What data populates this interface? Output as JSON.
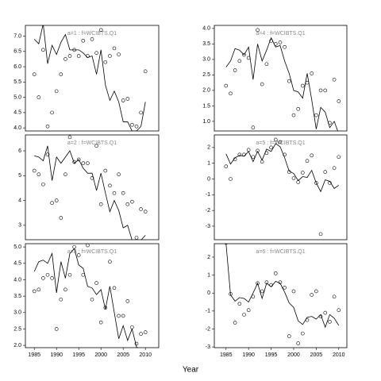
{
  "xlabel": "Year",
  "chart_data": [
    {
      "type": "line",
      "title": "a=1 : f=WCIBTS.Q1",
      "x": [
        1985,
        1986,
        1987,
        1988,
        1989,
        1990,
        1991,
        1992,
        1993,
        1994,
        1995,
        1996,
        1997,
        1998,
        1999,
        2000,
        2001,
        2002,
        2003,
        2004,
        2005,
        2006,
        2007,
        2008,
        2009,
        2010
      ],
      "series": [
        {
          "mode": "line",
          "color": "#000000",
          "values": [
            6.9,
            6.75,
            7.4,
            6.1,
            6.7,
            6.4,
            6.8,
            7.05,
            6.55,
            6.55,
            6.55,
            6.45,
            6.3,
            6.35,
            5.75,
            6.55,
            5.4,
            4.9,
            5.2,
            4.85,
            4.2,
            4.2,
            3.9,
            3.9,
            4.05,
            4.85
          ]
        },
        {
          "mode": "points",
          "color": "#000000",
          "values": [
            5.75,
            5.0,
            6.55,
            4.05,
            4.5,
            5.2,
            5.75,
            6.25,
            6.35,
            6.55,
            6.35,
            6.85,
            6.35,
            6.9,
            6.45,
            7.2,
            6.15,
            6.35,
            6.6,
            6.4,
            4.9,
            4.95,
            4.1,
            4.05,
            4.5,
            5.85
          ]
        }
      ],
      "xlim": [
        1983,
        2013
      ],
      "ylim": [
        3.9,
        7.35
      ],
      "yticks": [
        {
          "value": 4,
          "label": "4.0"
        },
        4.5,
        {
          "value": 5,
          "label": "5.0"
        },
        5.5,
        {
          "value": 6,
          "label": "6.0"
        },
        6.5,
        {
          "value": 7,
          "label": "7.0"
        }
      ]
    },
    {
      "type": "line",
      "title": "a=2 : f=WCIBTS.Q1",
      "x": [
        1985,
        1986,
        1987,
        1988,
        1989,
        1990,
        1991,
        1992,
        1993,
        1994,
        1995,
        1996,
        1997,
        1998,
        1999,
        2000,
        2001,
        2002,
        2003,
        2004,
        2005,
        2006,
        2007,
        2008,
        2009,
        2010
      ],
      "series": [
        {
          "mode": "line",
          "color": "#000000",
          "values": [
            5.8,
            5.75,
            5.6,
            6.2,
            4.8,
            5.75,
            5.5,
            5.75,
            6.0,
            5.5,
            5.65,
            5.3,
            5.1,
            5.1,
            4.4,
            5.1,
            4.3,
            3.55,
            4.0,
            3.6,
            2.9,
            3.0,
            2.4,
            2.4,
            2.4,
            2.6
          ]
        },
        {
          "mode": "points",
          "color": "#000000",
          "values": [
            5.2,
            5.05,
            4.65,
            5.85,
            3.9,
            4.0,
            3.3,
            5.05,
            6.55,
            5.55,
            5.65,
            5.5,
            5.5,
            4.9,
            6.2,
            3.85,
            5.2,
            4.6,
            4.3,
            5.05,
            4.3,
            3.85,
            3.95,
            2.5,
            3.65,
            3.55
          ]
        }
      ],
      "xlim": [
        1983,
        2013
      ],
      "ylim": [
        2.42,
        6.64
      ],
      "yticks": [
        3,
        4,
        5,
        6
      ]
    },
    {
      "type": "line",
      "title": "a=3 : f=WCIBTS.Q1",
      "x": [
        1985,
        1986,
        1987,
        1988,
        1989,
        1990,
        1991,
        1992,
        1993,
        1994,
        1995,
        1996,
        1997,
        1998,
        1999,
        2000,
        2001,
        2002,
        2003,
        2004,
        2005,
        2006,
        2007,
        2008,
        2009,
        2010
      ],
      "series": [
        {
          "mode": "line",
          "color": "#000000",
          "values": [
            4.25,
            4.55,
            4.6,
            4.5,
            4.8,
            3.6,
            4.55,
            4.05,
            4.8,
            4.95,
            4.45,
            4.35,
            3.8,
            3.75,
            3.55,
            3.7,
            3.1,
            3.8,
            3.0,
            2.2,
            2.6,
            2.15,
            2.5,
            1.95,
            1.85,
            1.8
          ]
        },
        {
          "mode": "points",
          "color": "#000000",
          "values": [
            3.65,
            3.7,
            4.05,
            4.15,
            4.05,
            2.5,
            3.4,
            3.7,
            4.15,
            5.0,
            4.75,
            4.15,
            5.05,
            3.4,
            3.9,
            2.7,
            3.15,
            4.55,
            3.75,
            2.9,
            2.9,
            3.35,
            2.55,
            2.05,
            2.35,
            2.4
          ]
        }
      ],
      "xlim": [
        1983,
        2013
      ],
      "ylim": [
        1.93,
        5.1
      ],
      "xticks": [
        1985,
        1990,
        1995,
        2000,
        2005,
        2010
      ],
      "yticks": [
        {
          "value": 2,
          "label": "2.0"
        },
        2.5,
        {
          "value": 3,
          "label": "3.0"
        },
        3.5,
        {
          "value": 4,
          "label": "4.0"
        },
        4.5,
        {
          "value": 5,
          "label": "5.0"
        }
      ]
    },
    {
      "type": "line",
      "title": "a=4 : f=WCIBTS.Q1",
      "x": [
        1985,
        1986,
        1987,
        1988,
        1989,
        1990,
        1991,
        1992,
        1993,
        1994,
        1995,
        1996,
        1997,
        1998,
        1999,
        2000,
        2001,
        2002,
        2003,
        2004,
        2005,
        2006,
        2007,
        2008,
        2009,
        2010
      ],
      "series": [
        {
          "mode": "line",
          "color": "#000000",
          "values": [
            2.75,
            2.95,
            3.35,
            3.3,
            3.15,
            3.4,
            2.35,
            3.5,
            2.95,
            3.3,
            3.7,
            3.4,
            3.45,
            2.95,
            2.55,
            2.0,
            1.95,
            1.75,
            2.55,
            1.7,
            0.75,
            1.45,
            1.3,
            0.8,
            1.0,
            0.6
          ]
        },
        {
          "mode": "points",
          "color": "#000000",
          "values": [
            2.15,
            1.9,
            2.65,
            2.95,
            3.15,
            3.05,
            0.8,
            3.95,
            2.2,
            2.85,
            3.6,
            3.5,
            3.55,
            3.4,
            2.3,
            1.2,
            1.4,
            2.15,
            2.25,
            2.55,
            1.2,
            2.0,
            2.0,
            0.95,
            2.35,
            1.65
          ]
        }
      ],
      "xlim": [
        1982.4,
        2011.8
      ],
      "ylim": [
        0.69,
        4.1
      ],
      "yticks": [
        {
          "value": 1,
          "label": "1.0"
        },
        1.5,
        {
          "value": 2,
          "label": "2.0"
        },
        2.5,
        {
          "value": 3,
          "label": "3.0"
        },
        3.5,
        {
          "value": 4,
          "label": "4.0"
        }
      ]
    },
    {
      "type": "line",
      "title": "a=5 : f=WCIBTS.Q1",
      "x": [
        1985,
        1986,
        1987,
        1988,
        1989,
        1990,
        1991,
        1992,
        1993,
        1994,
        1995,
        1996,
        1997,
        1998,
        1999,
        2000,
        2001,
        2002,
        2003,
        2004,
        2005,
        2006,
        2007,
        2008,
        2009,
        2010
      ],
      "series": [
        {
          "mode": "line",
          "color": "#000000",
          "values": [
            1.6,
            0.95,
            1.35,
            1.5,
            1.45,
            1.75,
            1.1,
            1.75,
            1.2,
            1.9,
            1.75,
            2.25,
            2.05,
            1.35,
            0.5,
            0.35,
            -0.1,
            0.15,
            0.1,
            0.55,
            -0.25,
            -0.8,
            -0.05,
            -0.15,
            -0.6,
            -0.4
          ]
        },
        {
          "mode": "points",
          "color": "#000000",
          "values": [
            0.8,
            0.0,
            1.25,
            1.55,
            1.55,
            1.85,
            1.4,
            1.8,
            1.1,
            1.65,
            2.0,
            2.5,
            2.35,
            1.55,
            0.45,
            0.05,
            -0.2,
            0.4,
            1.15,
            1.5,
            -0.25,
            -3.5,
            0.45,
            -0.25,
            0.7,
            1.4
          ]
        }
      ],
      "xlim": [
        1982.4,
        2011.8
      ],
      "ylim": [
        -3.86,
        2.8
      ],
      "yticks": [
        -3,
        -2,
        -1,
        0,
        1,
        2
      ]
    },
    {
      "type": "line",
      "title": "a=6 : f=WCIBTS.Q1",
      "x": [
        1985,
        1986,
        1987,
        1988,
        1989,
        1990,
        1991,
        1992,
        1993,
        1994,
        1995,
        1996,
        1997,
        1998,
        1999,
        2000,
        2001,
        2002,
        2003,
        2004,
        2005,
        2006,
        2007,
        2008,
        2009,
        2010
      ],
      "series": [
        {
          "mode": "line",
          "color": "#000000",
          "values": [
            2.75,
            -0.1,
            -0.45,
            -0.25,
            -0.3,
            -0.5,
            0.0,
            0.55,
            -0.3,
            0.55,
            0.35,
            0.65,
            0.55,
            0.05,
            -0.55,
            -0.8,
            -1.55,
            -1.75,
            -1.35,
            -1.3,
            -1.45,
            -1.2,
            -1.9,
            -1.2,
            -1.4,
            -1.8
          ]
        },
        {
          "mode": "points",
          "color": "#000000",
          "values": [
            2.8,
            -0.05,
            -1.65,
            -0.6,
            -1.2,
            -0.95,
            -0.2,
            0.55,
            0.1,
            0.6,
            0.45,
            1.1,
            0.6,
            0.3,
            -2.4,
            0.1,
            -2.8,
            -2.25,
            -1.5,
            -0.1,
            0.1,
            -1.3,
            -1.1,
            -1.6,
            -0.2,
            -0.95
          ]
        }
      ],
      "xlim": [
        1982.4,
        2011.8
      ],
      "ylim": [
        -3.04,
        2.75
      ],
      "xticks": [
        1985,
        1990,
        1995,
        2000,
        2005,
        2010
      ],
      "yticks": [
        -3,
        -2,
        -1,
        0,
        1,
        2
      ]
    }
  ]
}
